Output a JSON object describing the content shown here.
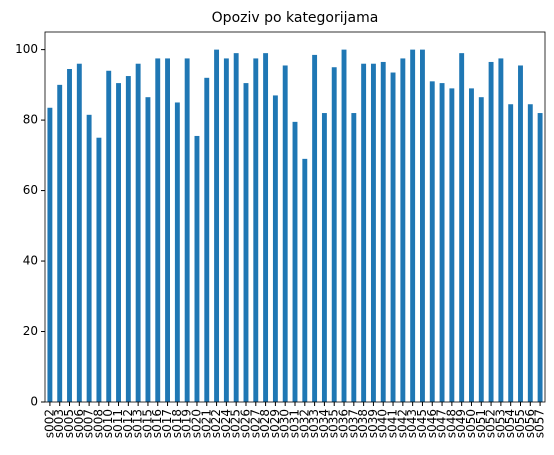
{
  "chart_data": {
    "type": "bar",
    "title": "Opoziv po kategorijama",
    "categories": [
      "s002",
      "s003",
      "s005",
      "s006",
      "s007",
      "s008",
      "s010",
      "s011",
      "s012",
      "s013",
      "s015",
      "s016",
      "s017",
      "s018",
      "s019",
      "s020",
      "s021",
      "s022",
      "s024",
      "s025",
      "s026",
      "s027",
      "s028",
      "s029",
      "s030",
      "s031",
      "s032",
      "s033",
      "s034",
      "s035",
      "s036",
      "s037",
      "s038",
      "s039",
      "s040",
      "s041",
      "s042",
      "s043",
      "s045",
      "s046",
      "s047",
      "s048",
      "s049",
      "s050",
      "s051",
      "s052",
      "s053",
      "s054",
      "s055",
      "s056",
      "s057"
    ],
    "values": [
      83.5,
      90,
      94.5,
      96,
      81.5,
      75,
      94,
      90.5,
      92.5,
      96,
      86.5,
      97.5,
      97.5,
      85,
      97.5,
      75.5,
      92,
      100,
      97.5,
      99,
      90.5,
      97.5,
      99,
      87,
      95.5,
      79.5,
      69,
      98.5,
      82,
      95,
      100,
      82,
      96,
      96,
      96.5,
      93.5,
      97.5,
      100,
      100,
      91,
      90.5,
      89,
      99,
      89,
      86.5,
      96.5,
      97.5,
      84.5,
      95.5,
      84.5,
      82
    ],
    "color": "#1f77b4",
    "ylim": [
      0,
      105
    ],
    "yticks": [
      0,
      20,
      40,
      60,
      80,
      100
    ]
  }
}
